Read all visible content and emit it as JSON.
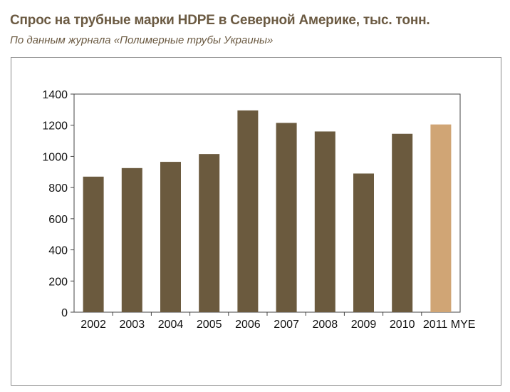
{
  "header": {
    "title": "Спрос на трубные марки HDPE в Северной Америке, тыс. тонн.",
    "subtitle": "По данным журнала «Полимерные трубы Украины»"
  },
  "chart_data": {
    "type": "bar",
    "title": "Спрос на трубные марки HDPE в Северной Америке, тыс. тонн.",
    "subtitle": "По данным журнала «Полимерные трубы Украины»",
    "xlabel": "",
    "ylabel": "",
    "categories": [
      "2002",
      "2003",
      "2004",
      "2005",
      "2006",
      "2007",
      "2008",
      "2009",
      "2010",
      "2011 MYE"
    ],
    "values": [
      870,
      925,
      965,
      1015,
      1295,
      1215,
      1160,
      890,
      1145,
      1205
    ],
    "ylim": [
      0,
      1400
    ],
    "yticks": [
      0,
      200,
      400,
      600,
      800,
      1000,
      1200,
      1400
    ],
    "grid": false,
    "legend": "none",
    "colors": {
      "bar": "#6b5a3e",
      "highlight": "#d0a575",
      "axis": "#444444",
      "frame": "#8a8a8a"
    },
    "highlight_categories": [
      "2011 MYE"
    ]
  }
}
